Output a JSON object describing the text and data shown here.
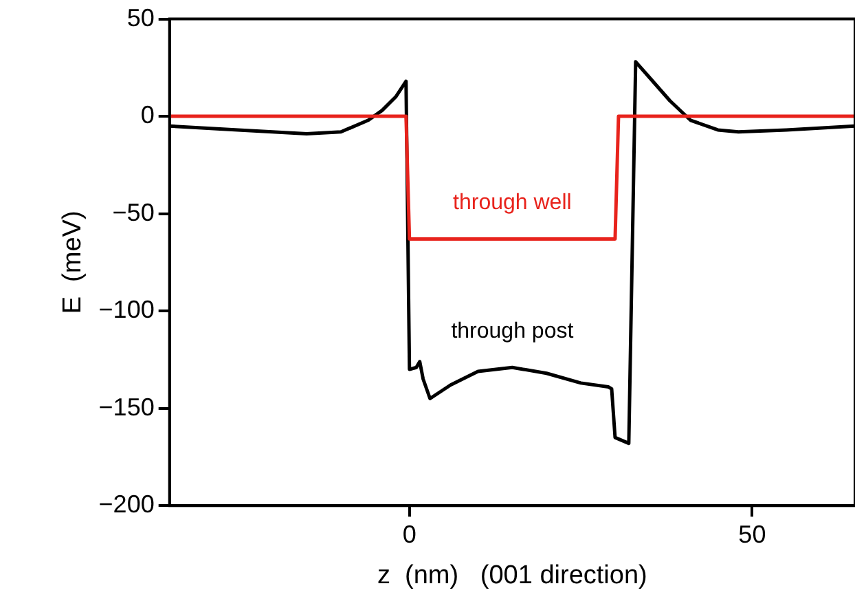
{
  "chart_data": {
    "type": "line",
    "xlabel": "z  (nm)   (001 direction)",
    "ylabel": "E  (meV)",
    "xlim": [
      -35,
      65
    ],
    "xticks": [
      0,
      50
    ],
    "ylim": [
      -200,
      50
    ],
    "yticks": [
      -200,
      -150,
      -100,
      -50,
      0,
      50
    ],
    "grid": false,
    "legend": false,
    "marker": "none",
    "line_style": "solid",
    "series": [
      {
        "color": "#e8231c",
        "x": [
          -35,
          -0.5,
          0,
          30,
          30.5,
          65
        ],
        "values": [
          0,
          0,
          -63,
          -63,
          0,
          0
        ]
      },
      {
        "color": "#000000",
        "x": [
          -35,
          -25,
          -15,
          -10,
          -6,
          -4,
          -2,
          -0.5,
          0,
          1,
          1.5,
          2,
          3,
          6,
          10,
          15,
          20,
          25,
          29,
          29.5,
          30,
          32,
          33,
          35,
          38,
          41,
          45,
          48,
          55,
          65
        ],
        "values": [
          -5,
          -7,
          -9,
          -8,
          -2,
          3,
          10,
          18,
          -130,
          -129,
          -126,
          -135,
          -145,
          -138,
          -131,
          -129,
          -132,
          -137,
          -139,
          -140,
          -165,
          -168,
          28,
          20,
          8,
          -2,
          -7,
          -8,
          -7,
          -5
        ]
      }
    ],
    "annotations": [
      "through well",
      "through post"
    ]
  }
}
